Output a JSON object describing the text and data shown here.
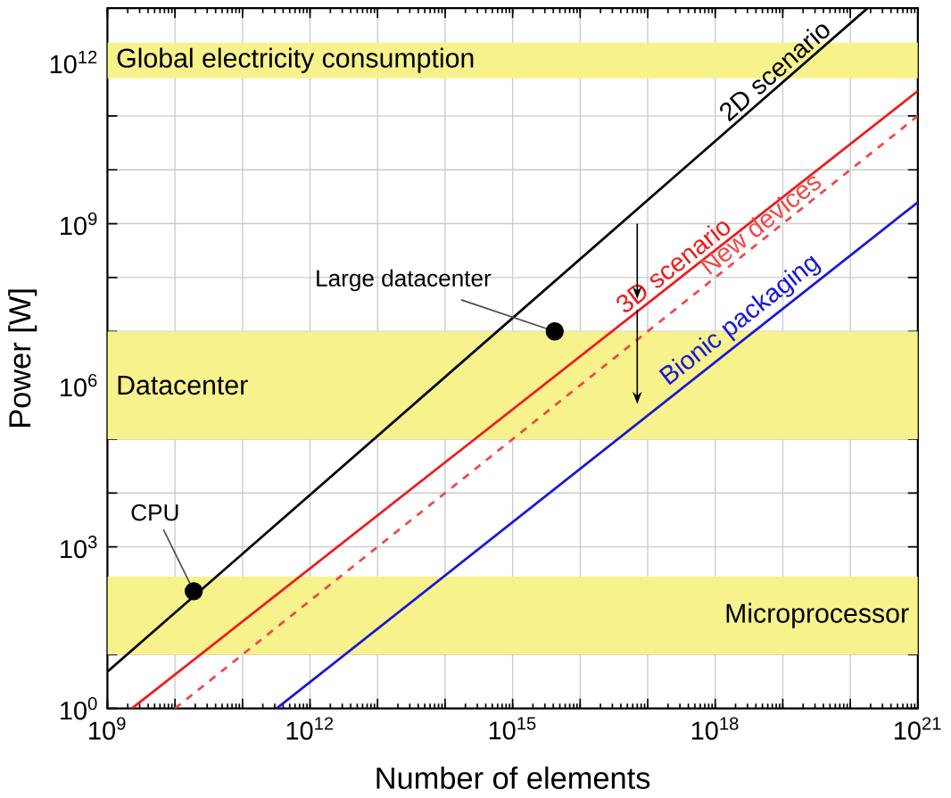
{
  "chart_data": {
    "type": "line",
    "xlabel": "Number of elements",
    "ylabel": "Power [W]",
    "log": "xy",
    "grid": true,
    "xlim": [
      1000000000.0,
      1e+21
    ],
    "ylim": [
      1,
      10000000000000.0
    ],
    "xticks": [
      {
        "value": 1000000000.0,
        "label": "10$^{9}$"
      },
      {
        "value": 10000000000.0,
        "label": null
      },
      {
        "value": 100000000000.0,
        "label": null
      },
      {
        "value": 1000000000000.0,
        "label": "10$^{12}$"
      },
      {
        "value": 10000000000000.0,
        "label": null
      },
      {
        "value": 100000000000000.0,
        "label": null
      },
      {
        "value": 1000000000000000.0,
        "label": "10$^{15}$"
      },
      {
        "value": 1e+16,
        "label": null
      },
      {
        "value": 1e+17,
        "label": null
      },
      {
        "value": 1e+18,
        "label": "10$^{18}$"
      },
      {
        "value": 1e+19,
        "label": null
      },
      {
        "value": 1e+20,
        "label": null
      },
      {
        "value": 1e+21,
        "label": "10$^{21}$"
      }
    ],
    "yticks": [
      {
        "value": 1,
        "label": "10$^{0}$"
      },
      {
        "value": 10,
        "label": null
      },
      {
        "value": 100,
        "label": null
      },
      {
        "value": 1000.0,
        "label": "10$^{3}$"
      },
      {
        "value": 10000.0,
        "label": null
      },
      {
        "value": 100000.0,
        "label": null
      },
      {
        "value": 1000000.0,
        "label": "10$^{6}$"
      },
      {
        "value": 10000000.0,
        "label": null
      },
      {
        "value": 100000000.0,
        "label": null
      },
      {
        "value": 1000000000.0,
        "label": "10$^{9}$"
      },
      {
        "value": 10000000000.0,
        "label": null
      },
      {
        "value": 100000000000.0,
        "label": null
      },
      {
        "value": 1000000000000.0,
        "label": "10$^{12}$"
      },
      {
        "value": 10000000000000.0,
        "label": null
      }
    ],
    "bands": [
      {
        "axis": "y",
        "from": 500000000000.0,
        "to": 2300000000000.0,
        "label": "Global electricity consumption",
        "color": "#f8f28c"
      },
      {
        "axis": "y",
        "from": 100000.0,
        "to": 10000000.0,
        "label": "Datacenter",
        "color": "#f8f28c"
      },
      {
        "axis": "y",
        "from": 10,
        "to": 280,
        "label": "Microprocessor",
        "color": "#f8f28c"
      }
    ],
    "series": [
      {
        "name": "2D scenario",
        "type": "line",
        "color": "#000000",
        "line_style": "solid",
        "x": [
          1000000000.0,
          1.8e+20
        ],
        "values": [
          4.8,
          10000000000000.0
        ]
      },
      {
        "name": "3D scenario",
        "type": "line",
        "color": "#ee1c1c",
        "line_style": "solid",
        "x": [
          2300000000.0,
          1e+21
        ],
        "values": [
          1,
          290000000000.0
        ]
      },
      {
        "name": "New devices",
        "type": "line",
        "color": "#f04848",
        "line_style": "dashed",
        "x": [
          10000000000.0,
          1e+21
        ],
        "values": [
          1,
          100000000000.0
        ]
      },
      {
        "name": "Bionic packaging",
        "type": "line",
        "color": "#1818d8",
        "line_style": "solid",
        "x": [
          320000000000.0,
          1e+21
        ],
        "values": [
          1,
          2500000000.0
        ]
      },
      {
        "name": "CPU",
        "type": "scatter",
        "marker": "circle",
        "color": "#000000",
        "x": [
          19000000000.0
        ],
        "values": [
          150
        ]
      },
      {
        "name": "Large datacenter",
        "type": "scatter",
        "marker": "circle",
        "color": "#000000",
        "x": [
          4200000000000000.0
        ],
        "values": [
          10000000.0
        ]
      }
    ]
  }
}
